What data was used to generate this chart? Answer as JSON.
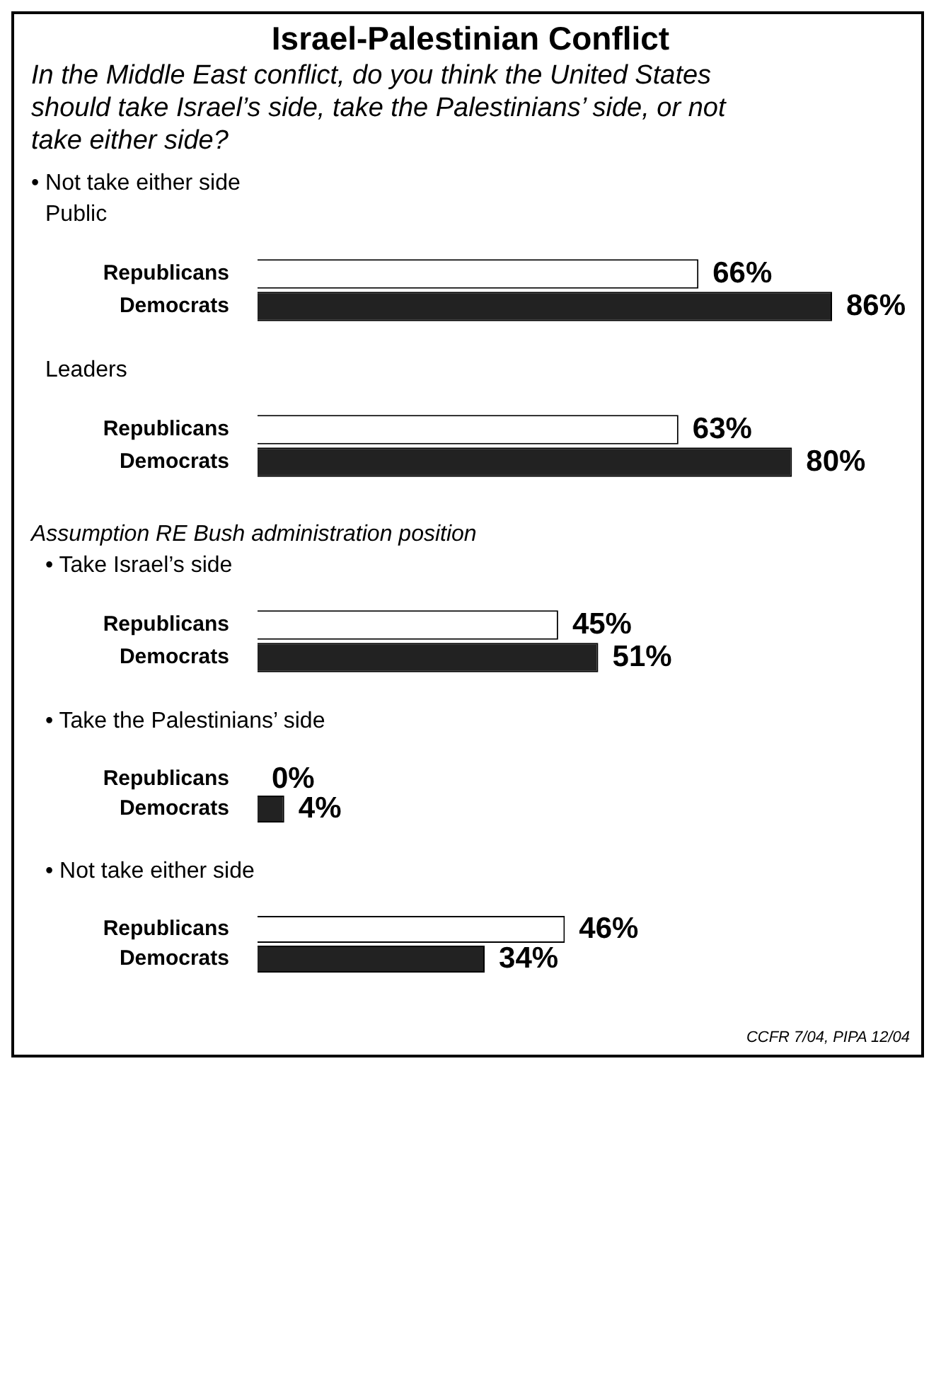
{
  "chart_data": [
    {
      "type": "other",
      "title": "Israel-Palestinian Conflict",
      "subtitle": "In the Middle East conflict, do you think the United States should take Israel’s side, take the Palestinians’ side, or not take either side?"
    },
    {
      "type": "bar",
      "orientation": "horizontal",
      "title": "• Not take either side",
      "subtitle": "Public",
      "categories": [
        "Republicans",
        "Democrats"
      ],
      "values": [
        66,
        86
      ],
      "value_labels": [
        "66%",
        "86%"
      ],
      "colors": [
        "#ffffff",
        "#222222"
      ],
      "tick_labels": "y"
    },
    {
      "type": "bar",
      "orientation": "horizontal",
      "subtitle": "Leaders",
      "categories": [
        "Republicans",
        "Democrats"
      ],
      "values": [
        63,
        80
      ],
      "value_labels": [
        "63%",
        "80%"
      ],
      "colors": [
        "#ffffff",
        "#222222"
      ],
      "tick_labels": "y"
    },
    {
      "type": "bar",
      "orientation": "horizontal",
      "title": "Assumption RE Bush administration position",
      "subtitle": "• Take Israel’s side",
      "categories": [
        "Republicans",
        "Democrats"
      ],
      "values": [
        45,
        51
      ],
      "value_labels": [
        "45%",
        "51%"
      ],
      "colors": [
        "#ffffff",
        "#222222"
      ],
      "tick_labels": "y"
    },
    {
      "type": "bar",
      "orientation": "horizontal",
      "subtitle": "• Take the Palestinians’ side",
      "categories": [
        "Republicans",
        "Democrats"
      ],
      "values": [
        0,
        4
      ],
      "value_labels": [
        "0%",
        "4%"
      ],
      "colors": [
        "#ffffff",
        "#222222"
      ],
      "tick_labels": "y"
    },
    {
      "type": "bar",
      "orientation": "horizontal",
      "subtitle": "• Not take either side",
      "categories": [
        "Republicans",
        "Democrats"
      ],
      "values": [
        46,
        34
      ],
      "value_labels": [
        "46%",
        "34%"
      ],
      "colors": [
        "#ffffff",
        "#222222"
      ],
      "tick_labels": "y",
      "annotations": [
        "CCFR 7/04, PIPA 12/04"
      ]
    }
  ]
}
